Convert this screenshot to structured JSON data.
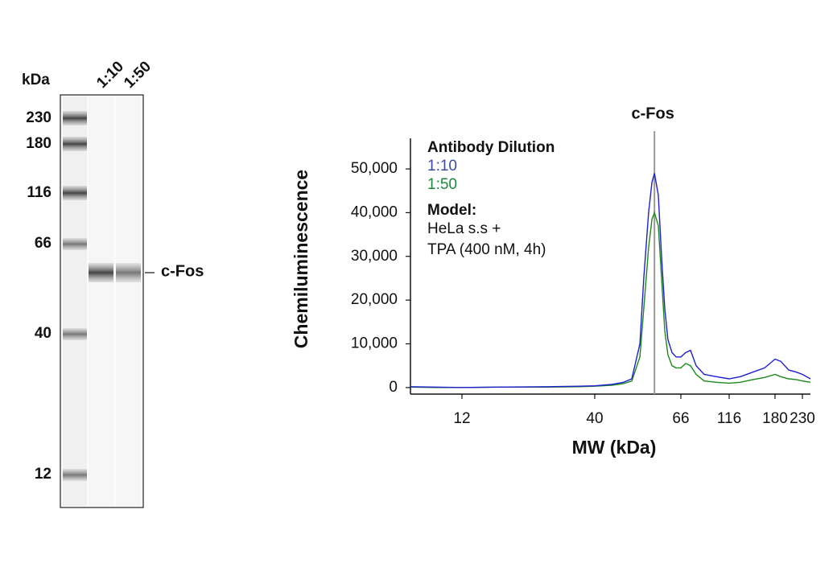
{
  "blot": {
    "unit_label": "kDa",
    "lanes": [
      "1:10",
      "1:50"
    ],
    "markers": [
      230,
      180,
      116,
      66,
      40,
      12
    ],
    "band_label": "c-Fos"
  },
  "chart_data": {
    "type": "line",
    "ylabel": "Chemiluminescence",
    "xlabel": "MW (kDa)",
    "xscale": "log",
    "xlim": [
      7.5,
      247
    ],
    "xticks": [
      12,
      40,
      66,
      116,
      180,
      230
    ],
    "ylim": [
      -1500,
      57000
    ],
    "yticks": [
      0,
      {
        "value": 10000,
        "label": "10,000"
      },
      {
        "value": 20000,
        "label": "20,000"
      },
      {
        "value": 30000,
        "label": "30,000"
      },
      {
        "value": 40000,
        "label": "40,000"
      },
      {
        "value": 50000,
        "label": "50,000"
      }
    ],
    "grid": false,
    "legend_title": "Antibody Dilution",
    "annotations": [
      "Model:",
      "HeLa s.s +",
      "TPA (400 nM, 4h)"
    ],
    "vline": {
      "x": 56.6,
      "label": "c-Fos",
      "color": "#999999"
    },
    "x": [
      7.5,
      9.4,
      12,
      16.8,
      26,
      34.8,
      40,
      44.1,
      47.3,
      49.6,
      52,
      53.2,
      54.7,
      55.8,
      56.6,
      57.9,
      59,
      60.1,
      61.2,
      62.7,
      64.2,
      66,
      69.8,
      73.9,
      78.9,
      86.7,
      99.8,
      116,
      129.2,
      145.1,
      162.9,
      180,
      189.3,
      203.4,
      218.7,
      230,
      247
    ],
    "series": [
      {
        "name": "1:10",
        "color": "#1f1fd0",
        "label_color": "#3a4da0",
        "values": [
          200,
          100,
          0,
          100,
          200,
          300,
          400,
          700,
          1200,
          2000,
          10000,
          25000,
          40000,
          47000,
          49000,
          44000,
          30000,
          18000,
          11000,
          8000,
          7000,
          7000,
          8000,
          8500,
          5000,
          3000,
          2500,
          2000,
          2500,
          3500,
          4500,
          6500,
          6000,
          4000,
          3500,
          3000,
          2000
        ]
      },
      {
        "name": "1:50",
        "color": "#1a8a1a",
        "label_color": "#1a8a3a",
        "values": [
          100,
          0,
          0,
          100,
          100,
          200,
          300,
          500,
          900,
          1500,
          7000,
          18000,
          32000,
          38500,
          40000,
          37000,
          25000,
          13000,
          7500,
          5000,
          4500,
          4500,
          5500,
          5000,
          3000,
          1500,
          1200,
          1000,
          1200,
          1800,
          2300,
          3000,
          2500,
          2000,
          1800,
          1500,
          1200
        ]
      }
    ]
  }
}
